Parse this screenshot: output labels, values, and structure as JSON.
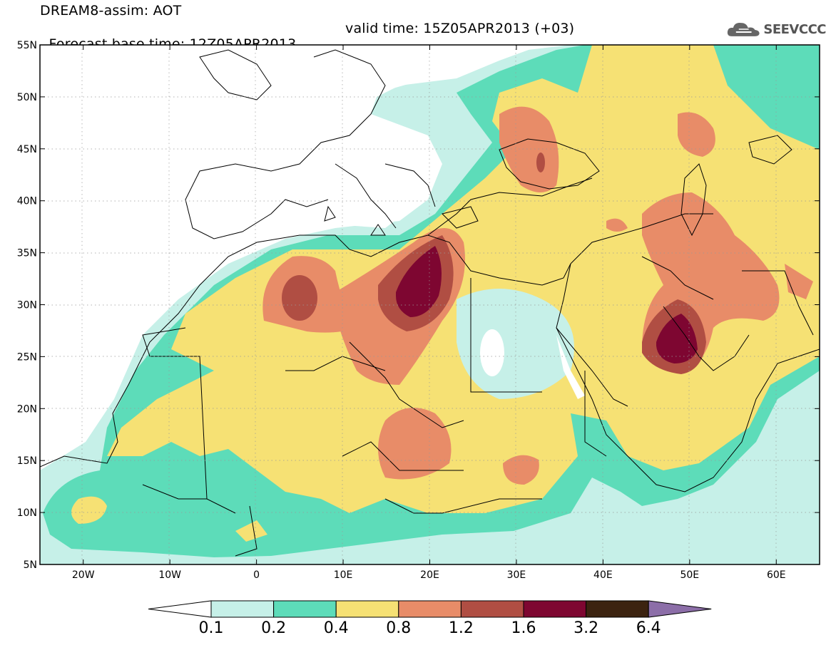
{
  "header": {
    "title_line1": "DREAM8-assim: AOT",
    "base_time": "Forecast base time: 12Z05APR2013",
    "valid_time": "valid time: 15Z05APR2013 (+03)"
  },
  "logo": {
    "text": "SEEVCCC",
    "icon": "cloud-icon"
  },
  "map": {
    "lon_range": [
      -25,
      65
    ],
    "lat_range": [
      5,
      55
    ],
    "lon_ticks": [
      "20W",
      "10W",
      "0",
      "10E",
      "20E",
      "30E",
      "40E",
      "50E",
      "60E"
    ],
    "lat_ticks": [
      "55N",
      "50N",
      "45N",
      "40N",
      "35N",
      "30N",
      "25N",
      "20N",
      "15N",
      "10N",
      "5N"
    ]
  },
  "colorbar": {
    "labels": [
      "0.1",
      "0.2",
      "0.4",
      "0.8",
      "1.2",
      "1.6",
      "3.2",
      "6.4"
    ],
    "colors": [
      "#ffffff",
      "#c6f0e8",
      "#5ddcb9",
      "#f6e174",
      "#e88c68",
      "#b04e43",
      "#7e0631",
      "#3c2310",
      "#8c6ea8"
    ]
  }
}
